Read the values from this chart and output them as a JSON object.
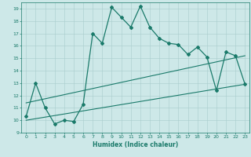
{
  "title": "",
  "xlabel": "Humidex (Indice chaleur)",
  "ylabel": "",
  "bg_color": "#cde8e8",
  "line_color": "#1a7a6a",
  "xlim": [
    -0.5,
    23.5
  ],
  "ylim": [
    9,
    19.5
  ],
  "xticks": [
    0,
    1,
    2,
    3,
    4,
    5,
    6,
    7,
    8,
    9,
    10,
    11,
    12,
    13,
    14,
    15,
    16,
    17,
    18,
    19,
    20,
    21,
    22,
    23
  ],
  "yticks": [
    9,
    10,
    11,
    12,
    13,
    14,
    15,
    16,
    17,
    18,
    19
  ],
  "curve1_x": [
    0,
    1,
    2,
    3,
    4,
    5,
    6,
    7,
    8,
    9,
    10,
    11,
    12,
    13,
    14,
    15,
    16,
    17,
    18,
    19,
    20,
    21,
    22,
    23
  ],
  "curve1_y": [
    10.3,
    13.0,
    11.0,
    9.7,
    10.0,
    9.9,
    11.3,
    17.0,
    16.2,
    19.1,
    18.3,
    17.5,
    19.2,
    17.5,
    16.6,
    16.2,
    16.1,
    15.3,
    15.9,
    15.1,
    12.4,
    15.5,
    15.2,
    12.9
  ],
  "line1_x": [
    0,
    23
  ],
  "line1_y": [
    10.0,
    12.9
  ],
  "line2_x": [
    0,
    23
  ],
  "line2_y": [
    11.4,
    15.2
  ]
}
